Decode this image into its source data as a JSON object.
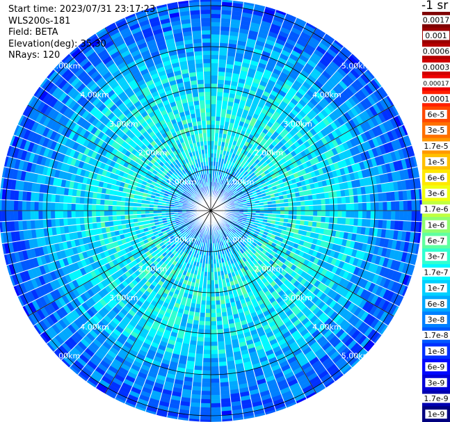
{
  "info": {
    "start_time": "Start time: 2023/07/31 23:17:23",
    "instrument": "WLS200s-181",
    "field": "Field: BETA",
    "elevation": "Elevation(deg): 35.30",
    "nrays": "NRays: 120"
  },
  "colorbar": {
    "unit_label": "-1 sr",
    "ticks": [
      "0.0017",
      "0.001",
      "0.0006",
      "0.0003",
      "0.00017",
      "0.0001",
      "6e-5",
      "3e-5",
      "1.7e-5",
      "1e-5",
      "6e-6",
      "3e-6",
      "1.7e-6",
      "1e-6",
      "6e-7",
      "3e-7",
      "1.7e-7",
      "1e-7",
      "6e-8",
      "3e-8",
      "1.7e-8",
      "1e-8",
      "6e-9",
      "3e-9",
      "1.7e-9",
      "1e-9"
    ],
    "colors": [
      "#7f0000",
      "#9a0000",
      "#b50000",
      "#d00000",
      "#ee0000",
      "#ff2000",
      "#ff4800",
      "#ff7000",
      "#ff9800",
      "#ffc000",
      "#ffe800",
      "#f0ff10",
      "#c0ff40",
      "#90ff70",
      "#60ffa0",
      "#30ffd0",
      "#00f8ff",
      "#00d0ff",
      "#00a8ff",
      "#0080ff",
      "#0058ff",
      "#0030ff",
      "#0008ff",
      "#0000d8",
      "#0000b0",
      "#00007f"
    ]
  },
  "chart_data": {
    "type": "heatmap",
    "projection": "polar PPI",
    "field": "BETA",
    "elevation_deg": 35.3,
    "n_rays": 120,
    "range_rings_km": [
      1.0,
      2.0,
      3.0,
      4.0,
      5.0
    ],
    "ring_labels": {
      "1.0": "1.00km",
      "2.0": "2.00km",
      "3.0": "3.00km",
      "4.0": "4.00km",
      "5.0": "5.00km"
    },
    "max_range_km": 5.15,
    "radial_lines_deg": [
      0,
      30,
      60,
      90,
      120,
      150,
      180,
      210,
      240,
      270,
      300,
      330
    ],
    "color_scale": "log",
    "value_range": [
      1e-09,
      0.0017
    ],
    "dominant_values_by_range": [
      {
        "range_km": 0.5,
        "value": 3e-08
      },
      {
        "range_km": 1.5,
        "value": 1.7e-07
      },
      {
        "range_km": 2.5,
        "value": 1.7e-07
      },
      {
        "range_km": 3.5,
        "value": 1e-07
      },
      {
        "range_km": 4.5,
        "value": 3e-08
      },
      {
        "range_km": 5.0,
        "value": 1.7e-08
      }
    ]
  }
}
